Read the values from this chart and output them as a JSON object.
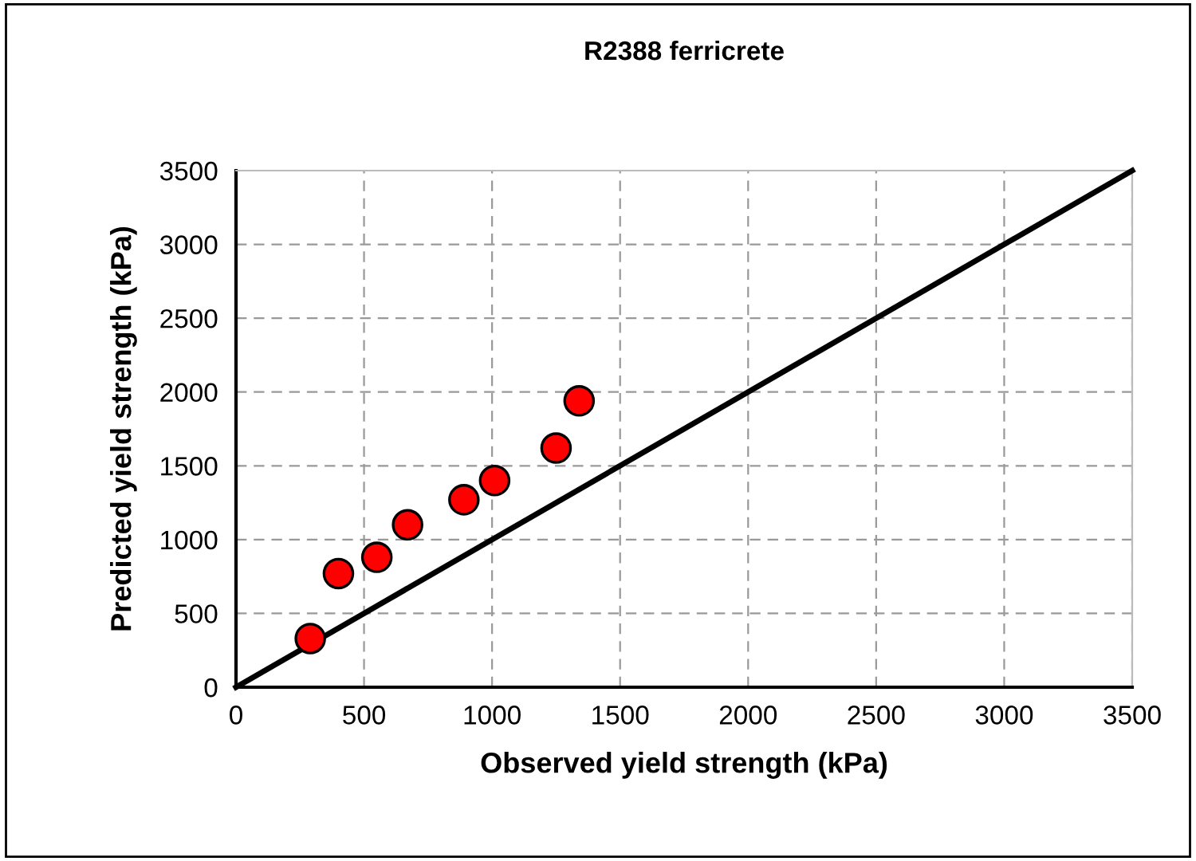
{
  "chart_data": {
    "type": "scatter",
    "title": "R2388 ferricrete",
    "xlabel": "Observed yield strength (kPa)",
    "ylabel": "Predicted yield strength (kPa)",
    "series": [
      {
        "color": "#ff0000",
        "marker": "circle",
        "x": [
          290,
          400,
          550,
          670,
          890,
          1010,
          1250,
          1340
        ],
        "values": [
          330,
          770,
          880,
          1100,
          1270,
          1400,
          1620,
          1940
        ]
      },
      {
        "type": "line",
        "color": "#000000",
        "marker": "none",
        "line_style": "solid",
        "x": [
          0,
          3500
        ],
        "values": [
          0,
          3500
        ]
      }
    ],
    "xlim": [
      0,
      3500
    ],
    "ylim": [
      0,
      3500
    ],
    "xticks": [
      0,
      500,
      1000,
      1500,
      2000,
      2500,
      3000,
      3500
    ],
    "yticks": [
      0,
      500,
      1000,
      1500,
      2000,
      2500,
      3000,
      3500
    ],
    "grid": true,
    "legend": false
  }
}
